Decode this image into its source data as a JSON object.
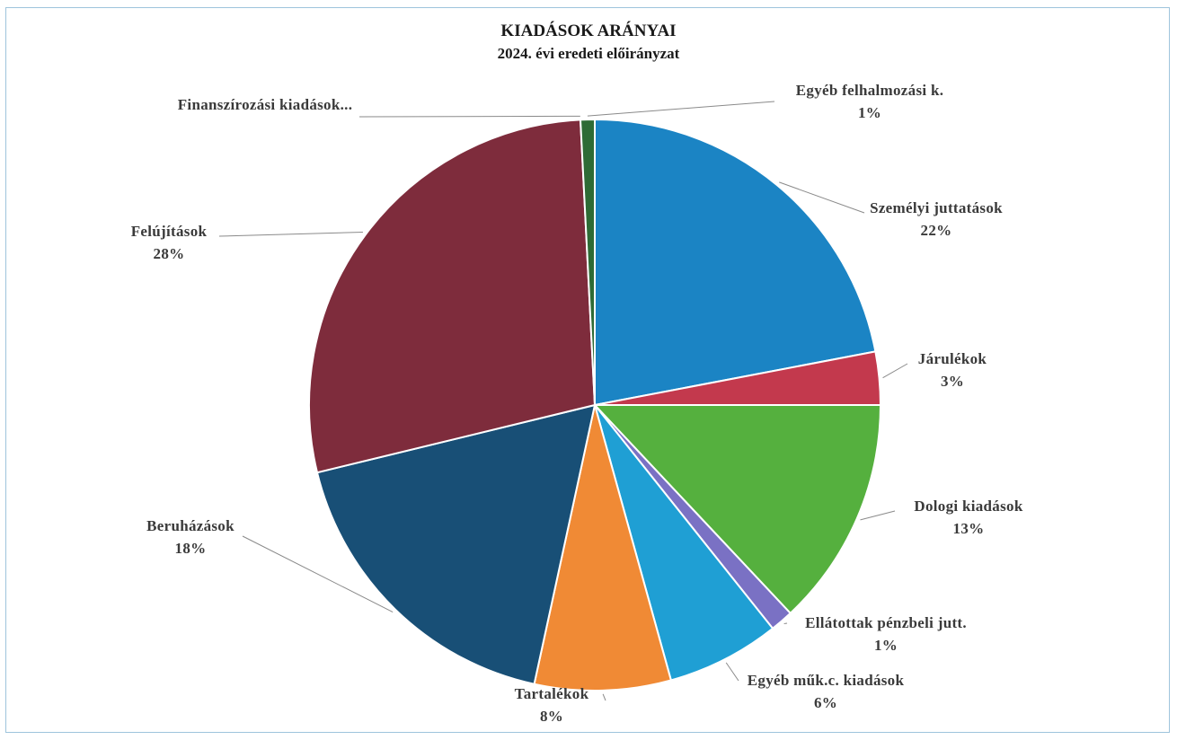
{
  "chart_data": {
    "type": "pie",
    "title": "KIADÁSOK ARÁNYAI",
    "subtitle": "2024. évi eredeti előirányzat",
    "start_angle_deg": 0,
    "direction": "clockwise",
    "slices": [
      {
        "label": "Személyi juttatások",
        "value": 22,
        "pct_label": "22%",
        "color": "#1b84c4"
      },
      {
        "label": "Járulékok",
        "value": 3,
        "pct_label": "3%",
        "color": "#c3394d"
      },
      {
        "label": "Dologi kiadások",
        "value": 13,
        "pct_label": "13%",
        "color": "#55b03e"
      },
      {
        "label": "Ellátottak pénzbeli jutt.",
        "value": 1.3,
        "pct_label": "1%",
        "color": "#7a71c4"
      },
      {
        "label": "Egyéb műk.c. kiadások",
        "value": 6.4,
        "pct_label": "6%",
        "color": "#1f9fd4"
      },
      {
        "label": "Tartalékok",
        "value": 7.7,
        "pct_label": "8%",
        "color": "#f08a35"
      },
      {
        "label": "Beruházások",
        "value": 17.8,
        "pct_label": "18%",
        "color": "#184f76"
      },
      {
        "label": "Felújítások",
        "value": 28,
        "pct_label": "28%",
        "color": "#7e2c3c"
      },
      {
        "label": "Finanszírozási kiadások...",
        "value": 0,
        "pct_label": "",
        "color": "#7e2c3c"
      },
      {
        "label": "Egyéb felhalmozási k.",
        "value": 0.8,
        "pct_label": "1%",
        "color": "#2e6b35"
      }
    ]
  }
}
